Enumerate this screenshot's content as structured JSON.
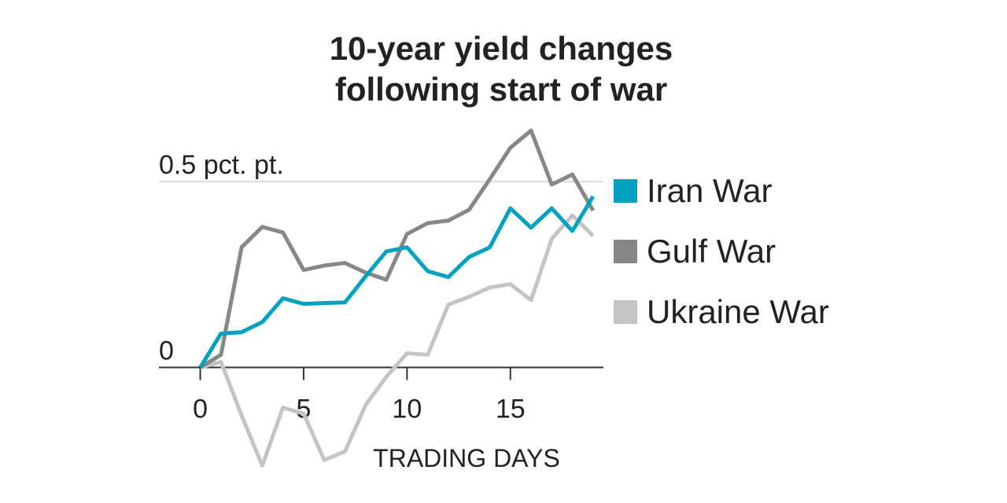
{
  "chart_data": {
    "type": "line",
    "title": "10-year yield changes following start of war",
    "x_label": "TRADING DAYS",
    "x": [
      0,
      1,
      2,
      3,
      4,
      5,
      6,
      7,
      8,
      9,
      10,
      11,
      12,
      13,
      14,
      15,
      16,
      17,
      18,
      19
    ],
    "series": [
      {
        "name": "Ukraine War",
        "color": "#c4c4c4",
        "values": [
          0,
          0.015,
          -0.129,
          -0.264,
          -0.108,
          -0.124,
          -0.249,
          -0.226,
          -0.101,
          -0.025,
          0.038,
          0.034,
          0.169,
          0.19,
          0.215,
          0.224,
          0.181,
          0.346,
          0.409,
          0.354
        ]
      },
      {
        "name": "Gulf War",
        "color": "#878787",
        "values": [
          0,
          0.034,
          0.323,
          0.378,
          0.363,
          0.262,
          0.274,
          0.281,
          0.255,
          0.236,
          0.359,
          0.388,
          0.395,
          0.424,
          0.506,
          0.591,
          0.637,
          0.492,
          0.519,
          0.422
        ]
      },
      {
        "name": "Iran War",
        "color": "#00a3bf",
        "values": [
          0,
          0.091,
          0.095,
          0.122,
          0.186,
          0.171,
          0.173,
          0.175,
          0.245,
          0.312,
          0.323,
          0.259,
          0.243,
          0.297,
          0.323,
          0.428,
          0.376,
          0.428,
          0.367,
          0.46
        ]
      }
    ],
    "legend_order": [
      2,
      1,
      0
    ],
    "xlim": [
      -2,
      19.5
    ],
    "xticks": [
      0,
      5,
      10,
      15
    ],
    "ylim": [
      -0.28,
      0.65
    ],
    "yticks": [
      0,
      {
        "value": 0.5,
        "label": "0.5 pct. pt."
      }
    ],
    "grid": true
  }
}
